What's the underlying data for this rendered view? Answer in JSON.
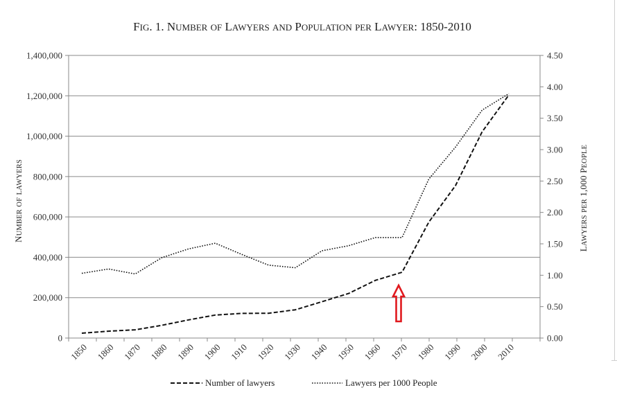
{
  "chart_data": {
    "type": "line",
    "title": "Fig. 1. Number of Lawyers and Population per Lawyer: 1850-2010",
    "x": [
      1850,
      1860,
      1870,
      1880,
      1890,
      1900,
      1910,
      1920,
      1930,
      1940,
      1950,
      1960,
      1970,
      1980,
      1990,
      2000,
      2010
    ],
    "x_tick_labels": [
      "1850",
      "1860",
      "1870",
      "1880",
      "1890",
      "1900",
      "1910",
      "1920",
      "1930",
      "1940",
      "1950",
      "1960",
      "1970",
      "1980",
      "1990",
      "2000",
      "2010"
    ],
    "ylabel_left": "Number of lawyers",
    "ylabel_right": "Lawyers per 1,000 People",
    "ylim_left": [
      0,
      1400000
    ],
    "ylim_right": [
      0,
      4.5
    ],
    "y_left_ticks": [
      "0",
      "200,000",
      "400,000",
      "600,000",
      "800,000",
      "1,000,000",
      "1,200,000",
      "1,400,000"
    ],
    "y_right_ticks": [
      "0.00",
      "0.50",
      "1.00",
      "1.50",
      "2.00",
      "2.50",
      "3.00",
      "3.50",
      "4.00",
      "4.50"
    ],
    "grid": "horizontal",
    "legend_position": "bottom",
    "series": [
      {
        "name": "Number of lawyers",
        "axis": "left",
        "style": "dashed",
        "values": [
          24000,
          34000,
          41000,
          63000,
          90000,
          114000,
          122000,
          123000,
          140000,
          180000,
          221000,
          286000,
          326000,
          574000,
          755000,
          1022000,
          1204000
        ]
      },
      {
        "name": "Lawyers per 1000 People",
        "axis": "right",
        "style": "dotted",
        "values": [
          1.03,
          1.1,
          1.02,
          1.28,
          1.42,
          1.51,
          1.33,
          1.16,
          1.12,
          1.39,
          1.47,
          1.6,
          1.6,
          2.53,
          3.04,
          3.63,
          3.89
        ]
      }
    ],
    "annotation": {
      "type": "arrow",
      "color": "#e0191e",
      "x": 1970,
      "points_to": "Number of lawyers"
    }
  }
}
